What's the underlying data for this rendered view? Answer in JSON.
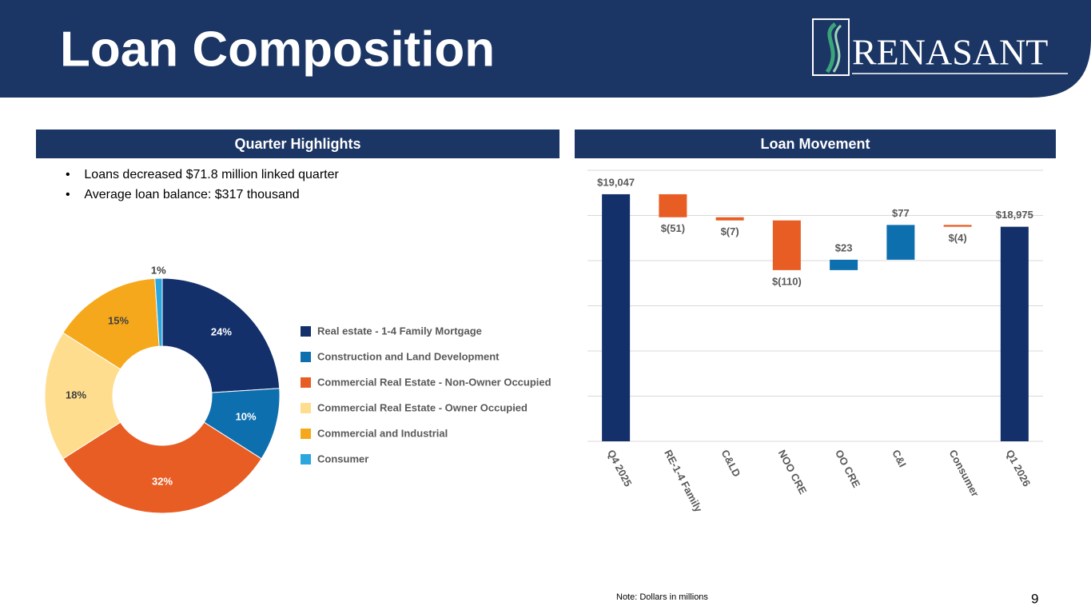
{
  "title": "Loan Composition",
  "logo": "RENASANT",
  "highlights": {
    "heading": "Quarter Highlights",
    "items": [
      "Loans decreased $71.8 million linked quarter",
      "Average loan balance: $317 thousand"
    ]
  },
  "note": "Note: Dollars in millions",
  "page_number": 9,
  "chart_data": [
    {
      "type": "donut",
      "categories": [
        "Real estate - 1-4 Family Mortgage",
        "Construction and Land Development",
        "Commercial Real Estate - Non-Owner Occupied",
        "Commercial Real Estate - Owner Occupied",
        "Commercial and Industrial",
        "Consumer"
      ],
      "values": [
        24,
        10,
        32,
        18,
        15,
        1
      ],
      "value_labels": [
        "24%",
        "10%",
        "32%",
        "18%",
        "15%",
        "1%"
      ],
      "colors": [
        "#14306b",
        "#0e6fae",
        "#e85d24",
        "#fedd8e",
        "#f6a81c",
        "#2ca6df"
      ]
    },
    {
      "type": "waterfall",
      "title": "Loan Movement",
      "categories": [
        "Q4 2025",
        "RE-1-4 Family",
        "C&LD",
        "NOO CRE",
        "OO CRE",
        "C&I",
        "Consumer",
        "Q1 2026"
      ],
      "values": [
        19047,
        -51,
        -7,
        -110,
        23,
        77,
        -4,
        18975
      ],
      "value_labels": [
        "$19,047",
        "$(51)",
        "$(7)",
        "$(110)",
        "$23",
        "$77",
        "$(4)",
        "$18,975"
      ],
      "measure": [
        "total",
        "relative",
        "relative",
        "relative",
        "relative",
        "relative",
        "relative",
        "total"
      ],
      "colors": {
        "total": "#14306b",
        "increase": "#0e6fae",
        "decrease": "#e85d24"
      },
      "ylim": [
        18500,
        19100
      ],
      "yticks": [
        18500,
        18600,
        18700,
        18800,
        18900,
        19000,
        19100
      ],
      "grid": true
    }
  ]
}
